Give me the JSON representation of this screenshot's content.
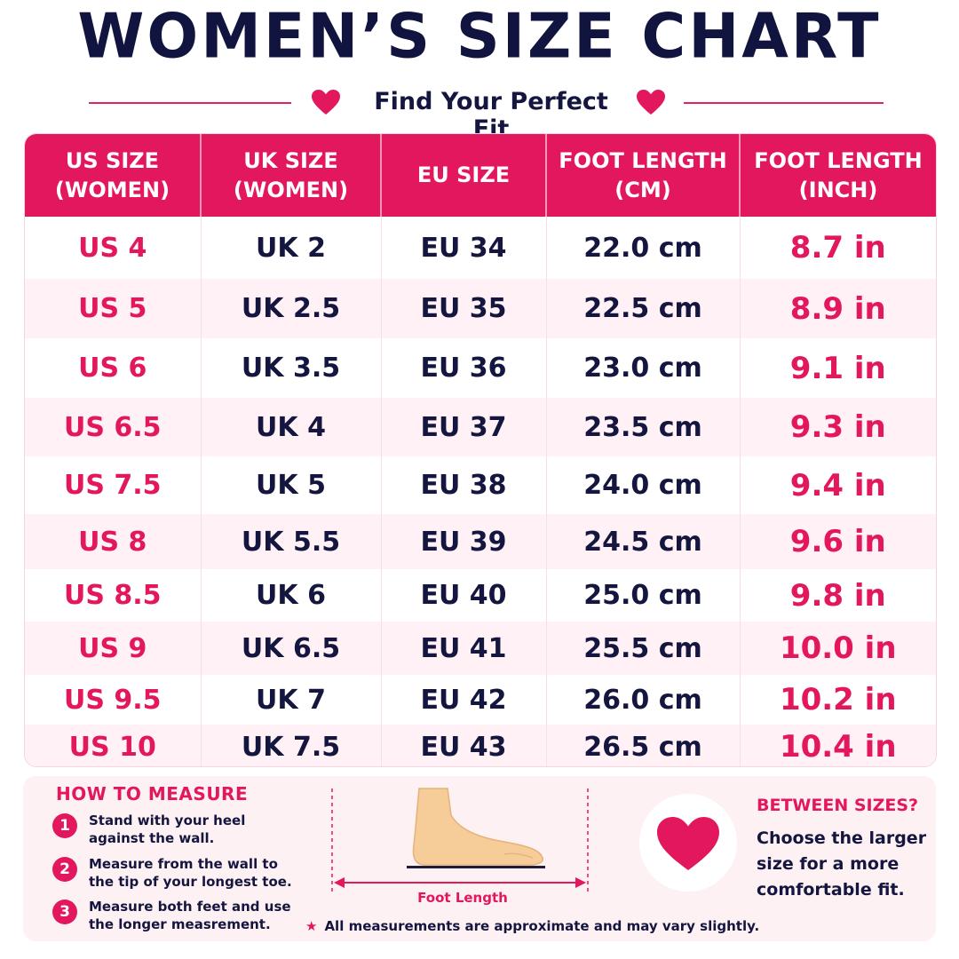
{
  "header": {
    "title": "WOMEN’S SIZE CHART",
    "subtitle": "Find Your Perfect Fit"
  },
  "colors": {
    "accent": "#e3175d",
    "navy": "#14163f",
    "row_tint": "#fff1f5"
  },
  "table": {
    "headers": [
      [
        "US SIZE",
        "(WOMEN)"
      ],
      [
        "UK SIZE",
        "(WOMEN)"
      ],
      [
        "EU SIZE"
      ],
      [
        "FOOT LENGTH",
        "(CM)"
      ],
      [
        "FOOT LENGTH",
        "(INCH)"
      ]
    ],
    "rows": [
      [
        "US 4",
        "UK 2",
        "EU 34",
        "22.0 cm",
        "8.7 in"
      ],
      [
        "US 5",
        "UK 2.5",
        "EU 35",
        "22.5 cm",
        "8.9 in"
      ],
      [
        "US 6",
        "UK 3.5",
        "EU 36",
        "23.0 cm",
        "9.1 in"
      ],
      [
        "US 6.5",
        "UK 4",
        "EU 37",
        "23.5 cm",
        "9.3 in"
      ],
      [
        "US 7.5",
        "UK 5",
        "EU 38",
        "24.0 cm",
        "9.4 in"
      ],
      [
        "US 8",
        "UK 5.5",
        "EU 39",
        "24.5 cm",
        "9.6 in"
      ],
      [
        "US 8.5",
        "UK 6",
        "EU 40",
        "25.0 cm",
        "9.8 in"
      ],
      [
        "US 9",
        "UK 6.5",
        "EU 41",
        "25.5 cm",
        "10.0 in"
      ],
      [
        "US 9.5",
        "UK 7",
        "EU 42",
        "26.0 cm",
        "10.2 in"
      ],
      [
        "US 10",
        "UK 7.5",
        "EU 43",
        "26.5 cm",
        "10.4 in"
      ]
    ]
  },
  "how_to": {
    "title": "HOW TO MEASURE",
    "steps": [
      {
        "num": "1",
        "text": "Stand with your heel against the wall."
      },
      {
        "num": "2",
        "text": "Measure from the wall to the tip of your longest toe."
      },
      {
        "num": "3",
        "text": "Measure both feet and use the longer measrement."
      }
    ]
  },
  "diagram": {
    "label": "Foot Length",
    "icon": "foot-icon"
  },
  "note": "All measurements are approximate and may vary slightly.",
  "between": {
    "title": "BETWEEN SIZES?",
    "text": "Choose the larger size for a more comfortable fit."
  }
}
